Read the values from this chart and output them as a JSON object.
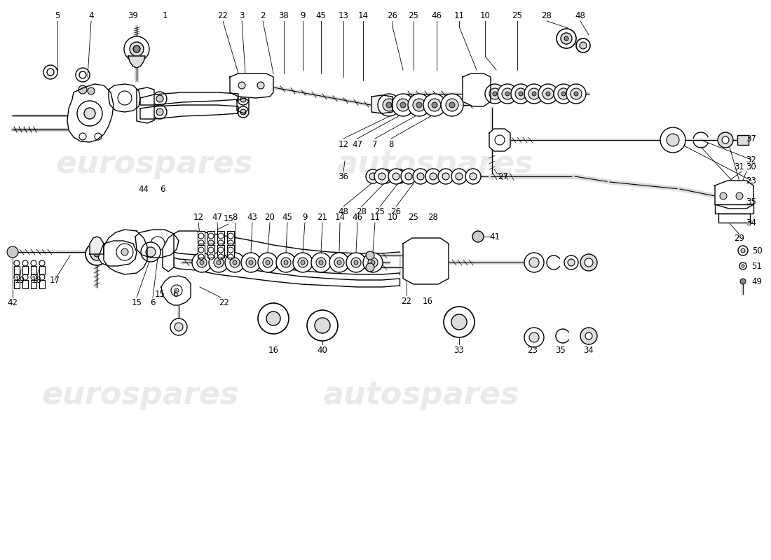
{
  "background_color": "#ffffff",
  "watermark_text_1": "eurospares",
  "watermark_text_2": "autospares",
  "line_color": "#000000",
  "watermark_color": "#bbbbbb",
  "watermark_alpha": 0.3,
  "top_labels": [
    [
      82,
      778,
      "5"
    ],
    [
      130,
      778,
      "4"
    ],
    [
      190,
      778,
      "39"
    ],
    [
      235,
      778,
      "1"
    ],
    [
      318,
      778,
      "22"
    ],
    [
      345,
      778,
      "3"
    ],
    [
      375,
      778,
      "2"
    ],
    [
      405,
      778,
      "38"
    ],
    [
      432,
      778,
      "9"
    ],
    [
      458,
      778,
      "45"
    ],
    [
      490,
      778,
      "13"
    ],
    [
      518,
      778,
      "14"
    ],
    [
      560,
      778,
      "26"
    ],
    [
      590,
      778,
      "25"
    ],
    [
      623,
      778,
      "46"
    ],
    [
      655,
      778,
      "11"
    ],
    [
      692,
      778,
      "10"
    ],
    [
      738,
      778,
      "25"
    ],
    [
      780,
      778,
      "28"
    ],
    [
      828,
      778,
      "48"
    ]
  ],
  "right_labels": [
    [
      1072,
      602,
      "37"
    ],
    [
      1072,
      572,
      "32"
    ],
    [
      1072,
      542,
      "23"
    ],
    [
      1072,
      512,
      "35"
    ],
    [
      1072,
      482,
      "34"
    ]
  ]
}
